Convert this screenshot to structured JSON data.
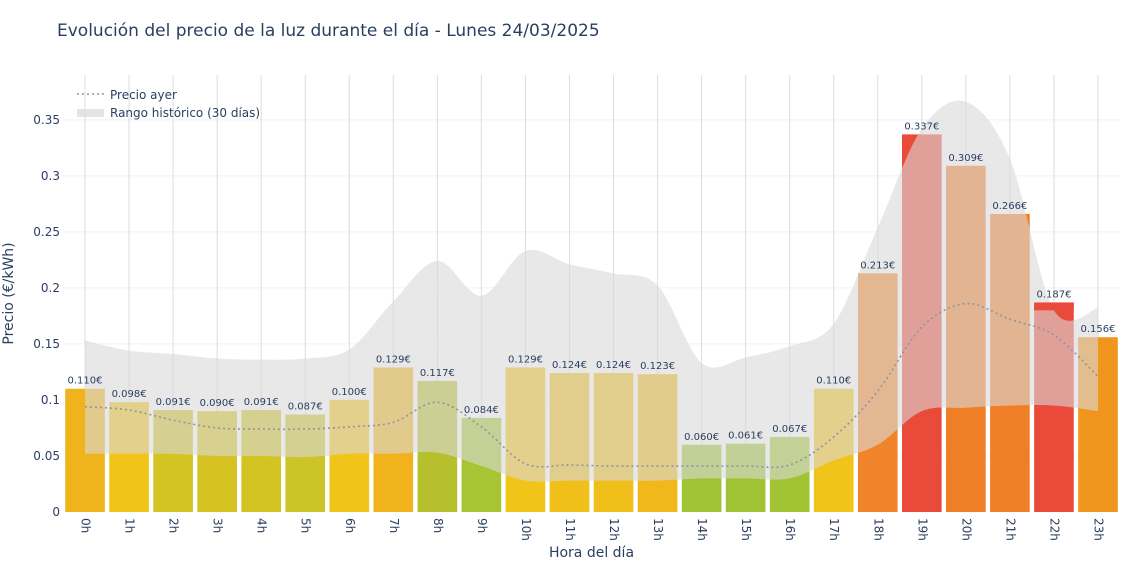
{
  "chart_data": {
    "type": "bar",
    "title": "Evolución del precio de la luz durante el día - Lunes 24/03/2025",
    "xlabel": "Hora del día",
    "ylabel": "Precio (€/kWh)",
    "ylim": [
      0,
      0.39
    ],
    "yticks": [
      0,
      0.05,
      0.1,
      0.15,
      0.2,
      0.25,
      0.3,
      0.35
    ],
    "ytick_labels": [
      "0",
      "0.05",
      "0.1",
      "0.15",
      "0.2",
      "0.25",
      "0.3",
      "0.35"
    ],
    "categories": [
      "0h",
      "1h",
      "2h",
      "3h",
      "4h",
      "5h",
      "6h",
      "7h",
      "8h",
      "9h",
      "10h",
      "11h",
      "12h",
      "13h",
      "14h",
      "15h",
      "16h",
      "17h",
      "18h",
      "19h",
      "20h",
      "21h",
      "22h",
      "23h"
    ],
    "values": [
      0.11,
      0.098,
      0.091,
      0.09,
      0.091,
      0.087,
      0.1,
      0.129,
      0.117,
      0.084,
      0.129,
      0.124,
      0.124,
      0.123,
      0.06,
      0.061,
      0.067,
      0.11,
      0.213,
      0.337,
      0.309,
      0.266,
      0.187,
      0.156
    ],
    "value_labels": [
      "0.110€",
      "0.098€",
      "0.091€",
      "0.090€",
      "0.091€",
      "0.087€",
      "0.100€",
      "0.129€",
      "0.117€",
      "0.084€",
      "0.129€",
      "0.124€",
      "0.124€",
      "0.123€",
      "0.060€",
      "0.061€",
      "0.067€",
      "0.110€",
      "0.213€",
      "0.337€",
      "0.309€",
      "0.266€",
      "0.187€",
      "0.156€"
    ],
    "bar_colors": [
      "#f0b31c",
      "#f0c419",
      "#d3c424",
      "#d6c221",
      "#d3c424",
      "#cdc428",
      "#f0c419",
      "#f0b31c",
      "#b6c02c",
      "#a7c432",
      "#f0c419",
      "#f0bf1a",
      "#f0bf1a",
      "#f0b81b",
      "#9fc334",
      "#9fc334",
      "#a2c332",
      "#f0c419",
      "#f0842a",
      "#ea4a3a",
      "#f07e26",
      "#f07e26",
      "#ea4a3a",
      "#f0961e"
    ],
    "overlay_colors": [
      "#e0a828",
      "#d8c428",
      "#c8c430",
      "#d0c22a",
      "#d0c22a",
      "#c8c430",
      "#e0b825",
      "#dca82a",
      "#a8b236",
      "#9cba38",
      "#dcb028",
      "#dcae2a",
      "#dcae2a",
      "#dcaa2a",
      "#9cba38",
      "#9cba38",
      "#9cba38",
      "#e0bc24",
      "#dc7a34",
      "#d4504a",
      "#dc7a34",
      "#dc7a34",
      "#d4504a",
      "#e8922a"
    ],
    "series": [
      {
        "name": "Precio ayer",
        "type": "line",
        "color": "#8a96a3",
        "style": "dotted",
        "values": [
          0.094,
          0.091,
          0.082,
          0.075,
          0.074,
          0.074,
          0.076,
          0.08,
          0.098,
          0.076,
          0.043,
          0.042,
          0.041,
          0.041,
          0.041,
          0.041,
          0.042,
          0.067,
          0.108,
          0.165,
          0.186,
          0.172,
          0.158,
          0.121
        ]
      },
      {
        "name": "Rango histórico (30 días)",
        "type": "band",
        "color": "#d9d9d9",
        "upper": [
          0.153,
          0.144,
          0.141,
          0.137,
          0.136,
          0.137,
          0.145,
          0.188,
          0.224,
          0.193,
          0.233,
          0.221,
          0.213,
          0.202,
          0.133,
          0.138,
          0.148,
          0.168,
          0.254,
          0.342,
          0.366,
          0.315,
          0.18,
          0.182
        ],
        "lower": [
          0.052,
          0.052,
          0.052,
          0.05,
          0.05,
          0.049,
          0.052,
          0.052,
          0.053,
          0.041,
          0.028,
          0.028,
          0.028,
          0.028,
          0.03,
          0.03,
          0.03,
          0.046,
          0.06,
          0.09,
          0.093,
          0.095,
          0.095,
          0.09
        ]
      }
    ],
    "legend": {
      "position": "top-left",
      "items": [
        "Precio ayer",
        "Rango histórico (30 días)"
      ]
    },
    "grid": true
  }
}
